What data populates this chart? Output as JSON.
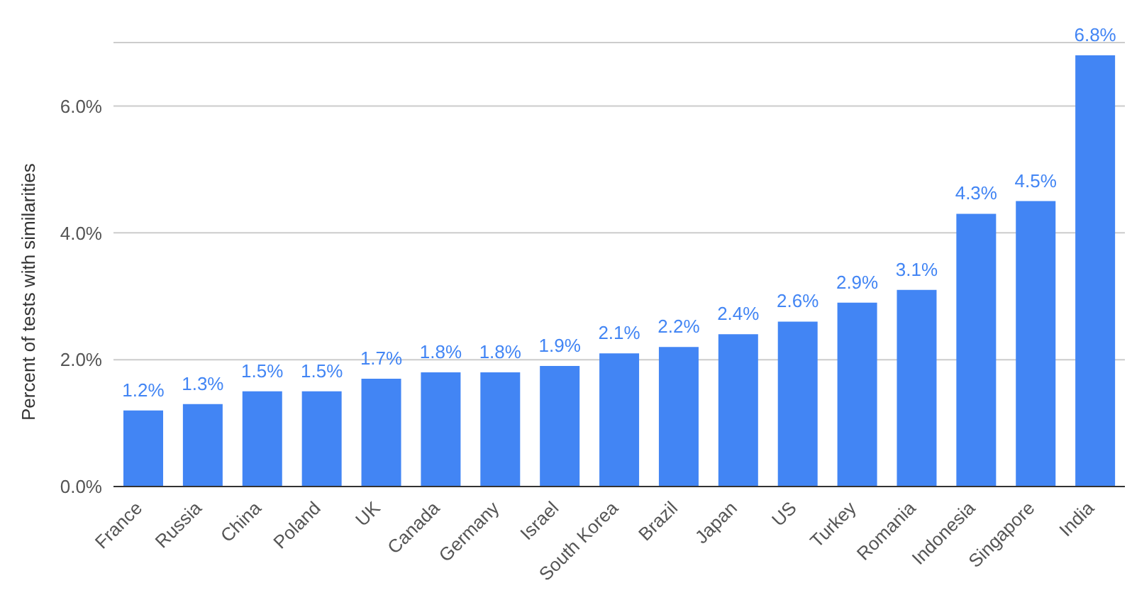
{
  "chart_data": {
    "type": "bar",
    "ylabel": "Percent of tests with similarities",
    "categories": [
      "France",
      "Russia",
      "China",
      "Poland",
      "UK",
      "Canada",
      "Germany",
      "Israel",
      "South Korea",
      "Brazil",
      "Japan",
      "US",
      "Turkey",
      "Romania",
      "Indonesia",
      "Singapore",
      "India"
    ],
    "values": [
      1.2,
      1.3,
      1.5,
      1.5,
      1.7,
      1.8,
      1.8,
      1.9,
      2.1,
      2.2,
      2.4,
      2.6,
      2.9,
      3.1,
      4.3,
      4.5,
      6.8
    ],
    "value_labels": [
      "1.2%",
      "1.3%",
      "1.5%",
      "1.5%",
      "1.7%",
      "1.8%",
      "1.8%",
      "1.9%",
      "2.1%",
      "2.2%",
      "2.4%",
      "2.6%",
      "2.9%",
      "3.1%",
      "4.3%",
      "4.5%",
      "6.8%"
    ],
    "color": "#4285f4",
    "ylim": [
      0,
      7
    ],
    "yticks": [
      {
        "value": 0,
        "label": "0.0%"
      },
      {
        "value": 2,
        "label": "2.0%"
      },
      {
        "value": 4,
        "label": "4.0%"
      },
      {
        "value": 6,
        "label": "6.0%"
      }
    ],
    "grid": "y",
    "legend": false
  }
}
